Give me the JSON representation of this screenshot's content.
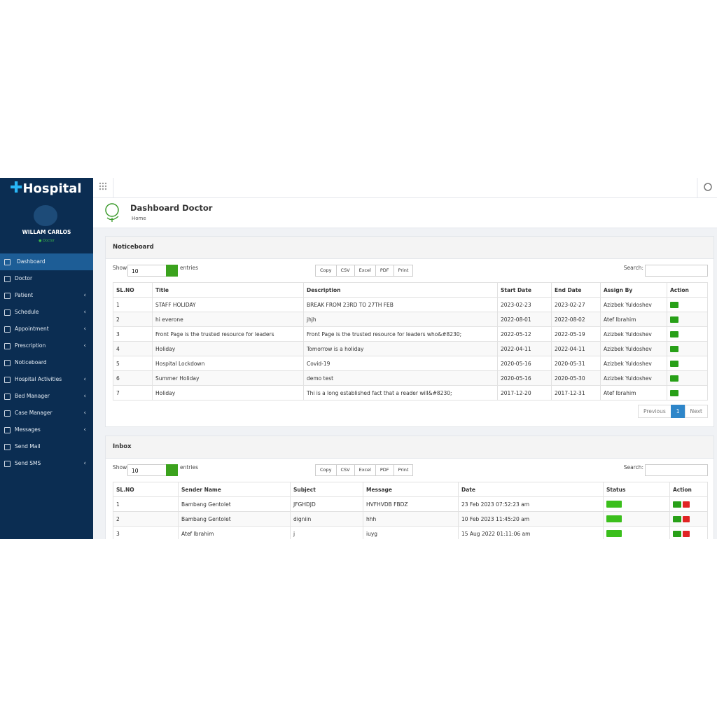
{
  "sidebar": {
    "brand": "Hospital",
    "user": "WILLAM CARLOS",
    "role": "Doctor",
    "menu": [
      {
        "label": "Dashboard",
        "active": true,
        "submenu": false
      },
      {
        "label": "Doctor",
        "active": false,
        "submenu": false
      },
      {
        "label": "Patient",
        "active": false,
        "submenu": true
      },
      {
        "label": "Schedule",
        "active": false,
        "submenu": true
      },
      {
        "label": "Appointment",
        "active": false,
        "submenu": true
      },
      {
        "label": "Prescription",
        "active": false,
        "submenu": true
      },
      {
        "label": "Noticeboard",
        "active": false,
        "submenu": false
      },
      {
        "label": "Hospital Activities",
        "active": false,
        "submenu": true
      },
      {
        "label": "Bed Manager",
        "active": false,
        "submenu": true
      },
      {
        "label": "Case Manager",
        "active": false,
        "submenu": true
      },
      {
        "label": "Messages",
        "active": false,
        "submenu": true
      },
      {
        "label": "Send Mail",
        "active": false,
        "submenu": false
      },
      {
        "label": "Send SMS",
        "active": false,
        "submenu": true
      }
    ]
  },
  "header": {
    "title": "Dashboard Doctor",
    "breadcrumb": "Home"
  },
  "noticeboard": {
    "title": "Noticeboard",
    "show": "Show",
    "page_length": "10",
    "entries": "entries",
    "buttons": [
      "Copy",
      "CSV",
      "Excel",
      "PDF",
      "Print"
    ],
    "search": "Search:",
    "columns": [
      "SL.NO",
      "Title",
      "Description",
      "Start Date",
      "End Date",
      "Assign By",
      "Action"
    ],
    "rows": [
      [
        "1",
        "STAFF HOLIDAY",
        "BREAK FROM 23RD TO 27TH FEB",
        "2023-02-23",
        "2023-02-27",
        "Azizbek Yuldoshev"
      ],
      [
        "2",
        "hi everone",
        "jhjh",
        "2022-08-01",
        "2022-08-02",
        "Atef Ibrahim"
      ],
      [
        "3",
        "Front Page is the trusted resource for leaders",
        "Front Page is the trusted resource for leaders who&#8230;",
        "2022-05-12",
        "2022-05-19",
        "Azizbek Yuldoshev"
      ],
      [
        "4",
        "Holiday",
        "Tomorrow is a holiday",
        "2022-04-11",
        "2022-04-11",
        "Azizbek Yuldoshev"
      ],
      [
        "5",
        "Hospital Lockdown",
        "Covid-19",
        "2020-05-16",
        "2020-05-31",
        "Azizbek Yuldoshev"
      ],
      [
        "6",
        "Summer Holiday",
        "demo test",
        "2020-05-16",
        "2020-05-30",
        "Azizbek Yuldoshev"
      ],
      [
        "7",
        "Holiday",
        "Thi is a long established fact that a reader will&#8230;",
        "2017-12-20",
        "2017-12-31",
        "Atef Ibrahim"
      ]
    ],
    "pagination": {
      "previous": "Previous",
      "page": "1",
      "next": "Next"
    }
  },
  "inbox": {
    "title": "Inbox",
    "show": "Show",
    "page_length": "10",
    "entries": "entries",
    "buttons": [
      "Copy",
      "CSV",
      "Excel",
      "PDF",
      "Print"
    ],
    "search": "Search:",
    "columns": [
      "SL.NO",
      "Sender Name",
      "Subject",
      "Message",
      "Date",
      "Status",
      "Action"
    ],
    "rows": [
      [
        "1",
        "Bambang Gentolet",
        "JFGHDJD",
        "HVFHVDB FBDZ",
        "23 Feb 2023 07:52:23 am"
      ],
      [
        "2",
        "Bambang Gentolet",
        "digniin",
        "hhh",
        "10 Feb 2023 11:45:20 am"
      ],
      [
        "3",
        "Atef Ibrahim",
        "j",
        "iuyg",
        "15 Aug 2022 01:11:06 am"
      ]
    ]
  }
}
